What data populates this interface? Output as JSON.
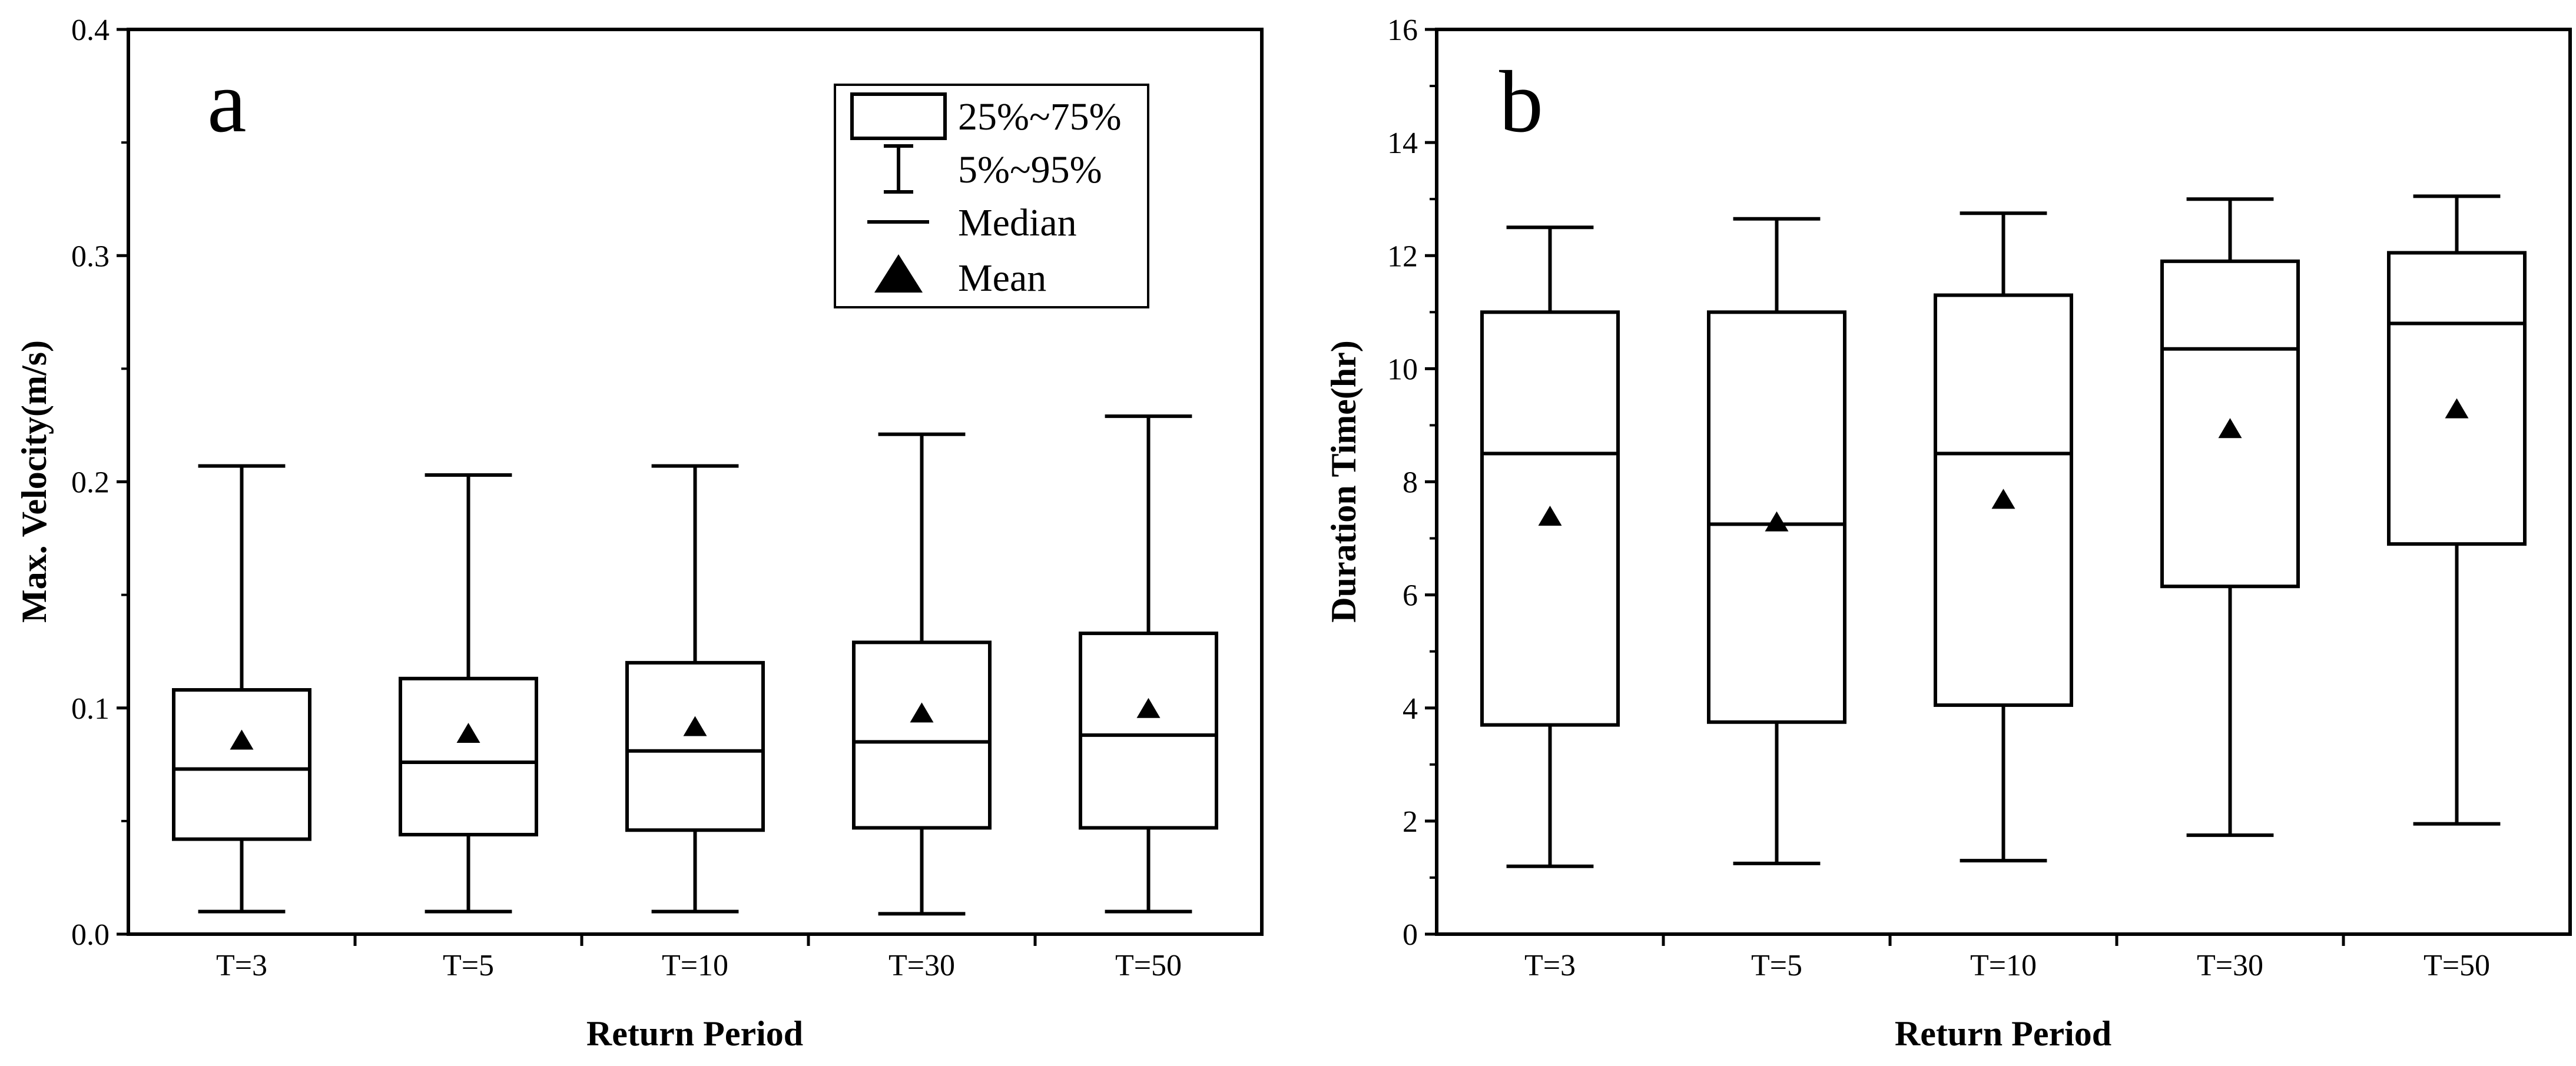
{
  "figure": {
    "panels": [
      "a",
      "b"
    ]
  },
  "colors": {
    "foreground": "#000000",
    "background": "#ffffff",
    "box_fill": "#ffffff"
  },
  "legend": {
    "box_label": "25%~75%",
    "whisker_label": "5%~95%",
    "median_label": "Median",
    "mean_label": "Mean"
  },
  "chart_data": [
    {
      "type": "box",
      "panel_label": "a",
      "xlabel": "Return Period",
      "ylabel": "Max. Velocity(m/s)",
      "ylim": [
        0,
        0.4
      ],
      "yticks": [
        "0.0",
        "0.1",
        "0.2",
        "0.3",
        "0.4"
      ],
      "ytick_values": [
        0,
        0.1,
        0.2,
        0.3,
        0.4
      ],
      "ytick_minor_step": 0.05,
      "categories": [
        "T=3",
        "T=5",
        "T=10",
        "T=30",
        "T=50"
      ],
      "stats": [
        {
          "p5": 0.01,
          "q1": 0.042,
          "median": 0.073,
          "q3": 0.108,
          "p95": 0.207,
          "mean": 0.086
        },
        {
          "p5": 0.01,
          "q1": 0.044,
          "median": 0.076,
          "q3": 0.113,
          "p95": 0.203,
          "mean": 0.089
        },
        {
          "p5": 0.01,
          "q1": 0.046,
          "median": 0.081,
          "q3": 0.12,
          "p95": 0.207,
          "mean": 0.092
        },
        {
          "p5": 0.009,
          "q1": 0.047,
          "median": 0.085,
          "q3": 0.129,
          "p95": 0.221,
          "mean": 0.098
        },
        {
          "p5": 0.01,
          "q1": 0.047,
          "median": 0.088,
          "q3": 0.133,
          "p95": 0.229,
          "mean": 0.1
        }
      ],
      "legend_position": "top-right"
    },
    {
      "type": "box",
      "panel_label": "b",
      "xlabel": "Return Period",
      "ylabel": "Duration Time(hr)",
      "ylim": [
        0,
        16
      ],
      "yticks": [
        "0",
        "2",
        "4",
        "6",
        "8",
        "10",
        "12",
        "14",
        "16"
      ],
      "ytick_values": [
        0,
        2,
        4,
        6,
        8,
        10,
        12,
        14,
        16
      ],
      "ytick_minor_step": 1,
      "categories": [
        "T=3",
        "T=5",
        "T=10",
        "T=30",
        "T=50"
      ],
      "stats": [
        {
          "p5": 1.2,
          "q1": 3.7,
          "median": 8.5,
          "q3": 11.0,
          "p95": 12.5,
          "mean": 7.4
        },
        {
          "p5": 1.25,
          "q1": 3.75,
          "median": 7.25,
          "q3": 11.0,
          "p95": 12.65,
          "mean": 7.3
        },
        {
          "p5": 1.3,
          "q1": 4.05,
          "median": 8.5,
          "q3": 11.3,
          "p95": 12.75,
          "mean": 7.7
        },
        {
          "p5": 1.75,
          "q1": 6.15,
          "median": 10.35,
          "q3": 11.9,
          "p95": 13.0,
          "mean": 8.95
        },
        {
          "p5": 1.95,
          "q1": 6.9,
          "median": 10.8,
          "q3": 12.05,
          "p95": 13.05,
          "mean": 9.3
        }
      ],
      "legend_position": "none"
    }
  ]
}
